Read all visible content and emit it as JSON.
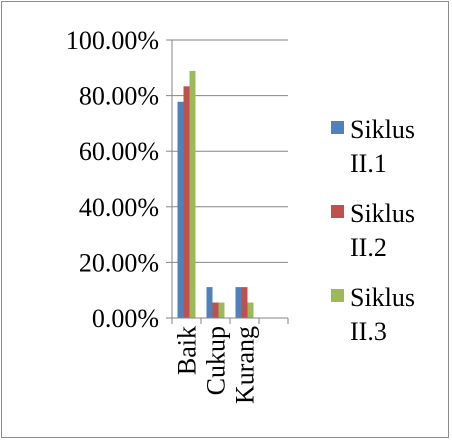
{
  "chart_data": {
    "type": "bar",
    "title": "",
    "xlabel": "",
    "ylabel": "",
    "categories": [
      "Baik",
      "Cukup",
      "Kurang"
    ],
    "series": [
      {
        "name": "Siklus II.1",
        "color": "#4f81bd",
        "values": [
          0.7778,
          0.1111,
          0.1111
        ]
      },
      {
        "name": "Siklus II.2",
        "color": "#c0504d",
        "values": [
          0.8333,
          0.0556,
          0.1111
        ]
      },
      {
        "name": "Siklus II.3",
        "color": "#9bbb59",
        "values": [
          0.8889,
          0.0556,
          0.0556
        ]
      }
    ],
    "ylim": [
      0,
      1
    ],
    "yticks": [
      "0.00%",
      "20.00%",
      "40.00%",
      "60.00%",
      "80.00%",
      "100.00%"
    ],
    "grid": true,
    "legend_position": "right"
  },
  "legend": {
    "items": [
      {
        "line1": "Siklus",
        "line2": "II.1"
      },
      {
        "line1": "Siklus",
        "line2": "II.2"
      },
      {
        "line1": "Siklus",
        "line2": "II.3"
      }
    ]
  }
}
